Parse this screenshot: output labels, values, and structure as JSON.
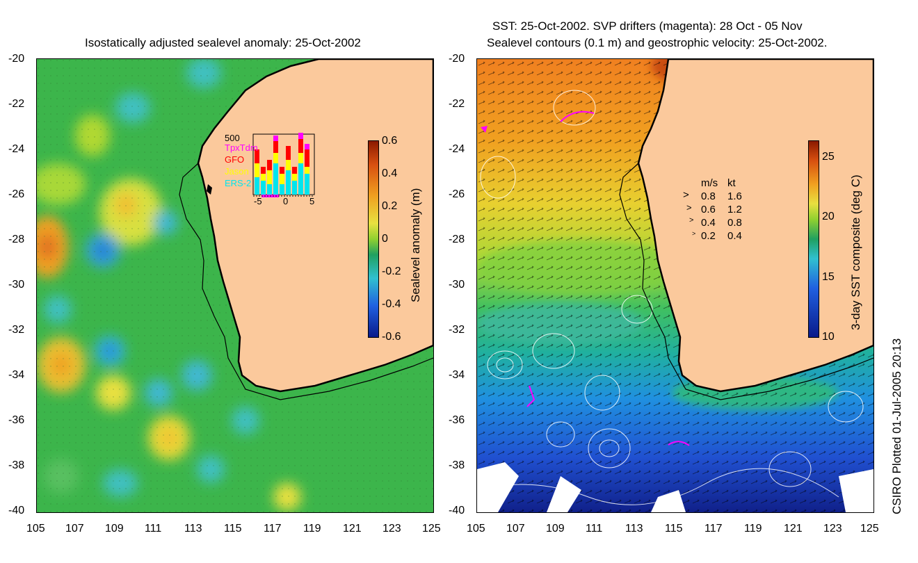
{
  "left_panel": {
    "title": "Isostatically adjusted sealevel anomaly: 25-Oct-2002",
    "colorbar": {
      "label": "Sealevel anomaly (m)",
      "ticks": [
        "0.6",
        "0.4",
        "0.2",
        "0",
        "-0.2",
        "-0.4",
        "-0.6"
      ]
    },
    "inset": {
      "ymax_label": "500",
      "x_ticks": [
        "-5",
        "0",
        "5"
      ],
      "legend": [
        {
          "label": "TpxTdm",
          "color": "#ff00ff"
        },
        {
          "label": "GFO",
          "color": "#ff0000"
        },
        {
          "label": "Jason",
          "color": "#ffff00"
        },
        {
          "label": "ERS-2",
          "color": "#00e5ee"
        }
      ]
    }
  },
  "right_panel": {
    "title_line1": "SST: 25-Oct-2002. SVP drifters (magenta): 28 Oct - 05 Nov",
    "title_line2": "Sealevel contours (0.1 m) and geostrophic velocity: 25-Oct-2002.",
    "colorbar": {
      "label": "3-day SST composite (deg C)",
      "ticks": [
        "25",
        "20",
        "15",
        "10"
      ]
    },
    "speed_legend": {
      "header_ms": "m/s",
      "header_kt": "kt",
      "rows": [
        {
          "ms": "0.8",
          "kt": "1.6"
        },
        {
          "ms": "0.6",
          "kt": "1.2"
        },
        {
          "ms": "0.4",
          "kt": "0.8"
        },
        {
          "ms": "0.2",
          "kt": "0.4"
        }
      ]
    }
  },
  "axes": {
    "y_ticks": [
      "-20",
      "-22",
      "-24",
      "-26",
      "-28",
      "-30",
      "-32",
      "-34",
      "-36",
      "-38",
      "-40"
    ],
    "x_ticks": [
      "105",
      "107",
      "109",
      "111",
      "113",
      "115",
      "117",
      "119",
      "121",
      "123",
      "125"
    ]
  },
  "footer": {
    "credit": "CSIRO Plotted 01-Jul-2005 20:13"
  },
  "colors": {
    "land": "#fbc99c",
    "coast": "#000000"
  }
}
